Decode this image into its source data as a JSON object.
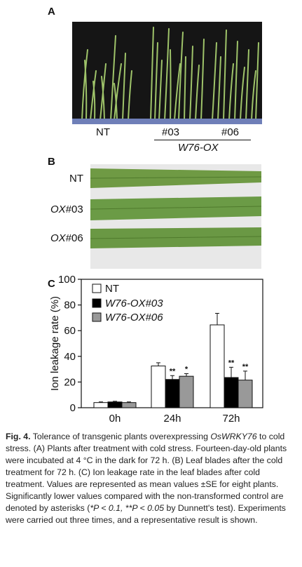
{
  "panels": {
    "a": {
      "letter": "A",
      "labels": {
        "nt": "NT",
        "l03": "#03",
        "l06": "#06",
        "group": "W76-OX"
      }
    },
    "b": {
      "letter": "B",
      "rows": [
        {
          "prefix": "",
          "label": "NT"
        },
        {
          "prefix": "OX",
          "label": "#03"
        },
        {
          "prefix": "OX",
          "label": "#06"
        }
      ]
    },
    "c": {
      "letter": "C"
    }
  },
  "chart_data": {
    "type": "bar",
    "categories": [
      "0h",
      "24h",
      "72h"
    ],
    "series": [
      {
        "name": "NT",
        "values": [
          4,
          32.5,
          64.5
        ],
        "errors": [
          0.5,
          2.5,
          9
        ],
        "color": "#ffffff",
        "stars": [
          "",
          "",
          ""
        ]
      },
      {
        "name": "W76-OX#03",
        "values": [
          4.5,
          22,
          23.5
        ],
        "errors": [
          0.5,
          3,
          8
        ],
        "color": "#000000",
        "stars": [
          "",
          "**",
          "**"
        ]
      },
      {
        "name": "W76-OX#06",
        "values": [
          4,
          24.5,
          21.5
        ],
        "errors": [
          0.5,
          2,
          7
        ],
        "color": "#999999",
        "stars": [
          "",
          "*",
          "**"
        ]
      }
    ],
    "ylabel": "Ion leakage rate (%)",
    "ylim": [
      0,
      100
    ],
    "yticks": [
      "0",
      "20",
      "40",
      "60",
      "80",
      "100"
    ]
  },
  "caption": {
    "fig_label": "Fig. 4.",
    "text_before": "Tolerance of transgenic plants overexpressing ",
    "gene": "OsWRKY76",
    "text_after": " to cold stress. (A) Plants after treatment with cold stress. Fourteen-day-old plants were incubated at 4 °C in the dark for 72 h. (B) Leaf blades after the cold treatment for 72 h. (C) Ion leakage rate in the leaf blades after cold treatment. Values are represented as mean values ±SE for eight plants. Significantly lower values compared with the non-transformed control are denoted by asterisks (",
    "p1": "*P < 0.1, **P < 0.05",
    "text_end": " by Dunnett's test). Experiments were carried out three times, and a representative result is shown."
  }
}
